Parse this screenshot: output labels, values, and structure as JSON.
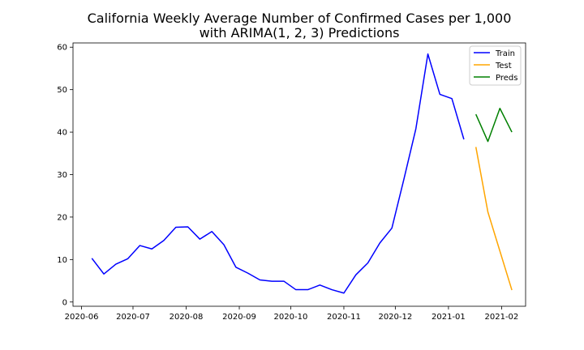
{
  "chart_data": {
    "type": "line",
    "title_lines": [
      "California Weekly Average Number of Confirmed Cases per 1,000",
      "with ARIMA(1, 2, 3) Predictions"
    ],
    "xlabel": "",
    "ylabel": "",
    "ylim": [
      -1,
      61
    ],
    "xlim": [
      "2020-05-27",
      "2021-02-15"
    ],
    "y_ticks": [
      0,
      10,
      20,
      30,
      40,
      50,
      60
    ],
    "x_ticks": [
      "2020-06",
      "2020-07",
      "2020-08",
      "2020-09",
      "2020-10",
      "2020-11",
      "2020-12",
      "2021-01",
      "2021-02"
    ],
    "grid": false,
    "legend_position": "top-right",
    "series": [
      {
        "name": "Train",
        "color": "#0000ff",
        "x": [
          "2020-06-07",
          "2020-06-14",
          "2020-06-21",
          "2020-06-28",
          "2020-07-05",
          "2020-07-12",
          "2020-07-19",
          "2020-07-26",
          "2020-08-02",
          "2020-08-09",
          "2020-08-16",
          "2020-08-23",
          "2020-08-30",
          "2020-09-06",
          "2020-09-13",
          "2020-09-20",
          "2020-09-27",
          "2020-10-04",
          "2020-10-11",
          "2020-10-18",
          "2020-10-25",
          "2020-11-01",
          "2020-11-08",
          "2020-11-15",
          "2020-11-22",
          "2020-11-29",
          "2020-12-06",
          "2020-12-13",
          "2020-12-20",
          "2020-12-27",
          "2021-01-03",
          "2021-01-10"
        ],
        "y": [
          10.3,
          6.6,
          8.9,
          10.2,
          13.3,
          12.5,
          14.5,
          17.6,
          17.7,
          14.8,
          16.6,
          13.5,
          8.2,
          6.8,
          5.2,
          4.9,
          4.9,
          2.9,
          2.9,
          4.0,
          2.9,
          2.1,
          6.4,
          9.2,
          13.9,
          17.4,
          28.9,
          40.8,
          58.4,
          48.9,
          47.9,
          38.3
        ]
      },
      {
        "name": "Test",
        "color": "#ffa500",
        "x": [
          "2021-01-17",
          "2021-01-24",
          "2021-01-31",
          "2021-02-07"
        ],
        "y": [
          36.5,
          21.2,
          12.0,
          2.8
        ]
      },
      {
        "name": "Preds",
        "color": "#008000",
        "x": [
          "2021-01-17",
          "2021-01-24",
          "2021-01-31",
          "2021-02-07"
        ],
        "y": [
          44.2,
          37.8,
          45.6,
          40.0
        ]
      }
    ]
  }
}
